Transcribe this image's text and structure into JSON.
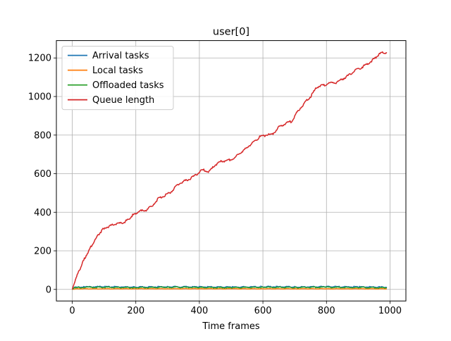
{
  "chart_data": {
    "type": "line",
    "title": "user[0]",
    "xlabel": "Time frames",
    "ylabel": "",
    "xlim": [
      -50,
      1050
    ],
    "ylim": [
      -60,
      1290
    ],
    "xticks": [
      0,
      200,
      400,
      600,
      800,
      1000
    ],
    "yticks": [
      0,
      200,
      400,
      600,
      800,
      1000,
      1200
    ],
    "grid": true,
    "legend_position": "top-left",
    "series": [
      {
        "name": "Arrival tasks",
        "color": "#1f77b4",
        "x": [
          0,
          10,
          20,
          50,
          100,
          200,
          300,
          400,
          500,
          600,
          700,
          800,
          900,
          990
        ],
        "y": [
          0,
          14,
          12,
          13,
          14,
          12,
          14,
          13,
          12,
          14,
          13,
          14,
          13,
          12
        ]
      },
      {
        "name": "Local tasks",
        "color": "#ff7f0e",
        "x": [
          0,
          10,
          100,
          200,
          300,
          400,
          500,
          600,
          700,
          800,
          900,
          990
        ],
        "y": [
          0,
          3,
          3,
          3,
          3,
          3,
          3,
          3,
          3,
          3,
          3,
          3
        ]
      },
      {
        "name": "Offloaded tasks",
        "color": "#2ca02c",
        "x": [
          0,
          10,
          20,
          50,
          100,
          200,
          300,
          400,
          500,
          600,
          700,
          800,
          900,
          990
        ],
        "y": [
          0,
          11,
          10,
          10,
          11,
          9,
          11,
          10,
          9,
          11,
          10,
          11,
          10,
          9
        ]
      },
      {
        "name": "Queue length",
        "color": "#d62728",
        "x": [
          0,
          10,
          25,
          40,
          55,
          70,
          85,
          100,
          120,
          140,
          160,
          175,
          190,
          210,
          230,
          250,
          270,
          290,
          310,
          330,
          350,
          370,
          390,
          410,
          430,
          450,
          470,
          490,
          510,
          530,
          550,
          570,
          590,
          610,
          630,
          650,
          670,
          690,
          710,
          730,
          750,
          770,
          790,
          810,
          830,
          850,
          870,
          890,
          910,
          930,
          950,
          965,
          980,
          990
        ],
        "y": [
          0,
          50,
          110,
          165,
          210,
          250,
          290,
          318,
          330,
          340,
          345,
          360,
          385,
          405,
          410,
          430,
          470,
          485,
          505,
          540,
          560,
          572,
          595,
          620,
          610,
          645,
          665,
          668,
          680,
          710,
          735,
          765,
          790,
          800,
          805,
          840,
          860,
          870,
          925,
          965,
          1000,
          1050,
          1058,
          1070,
          1072,
          1090,
          1110,
          1135,
          1150,
          1170,
          1195,
          1218,
          1230,
          1225
        ]
      }
    ]
  }
}
